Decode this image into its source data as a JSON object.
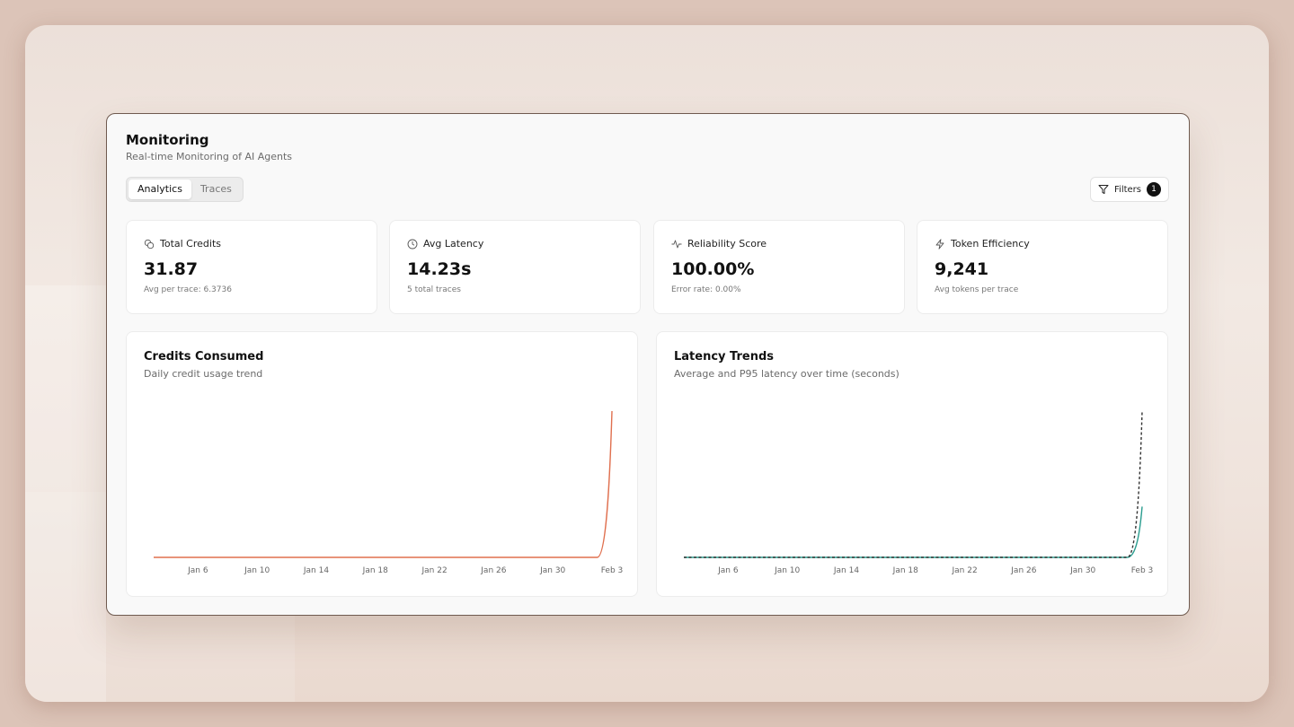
{
  "header": {
    "title": "Monitoring",
    "subtitle": "Real-time Monitoring of AI Agents"
  },
  "tabs": [
    {
      "label": "Analytics",
      "active": true
    },
    {
      "label": "Traces",
      "active": false
    }
  ],
  "filters": {
    "label": "Filters",
    "count": "1"
  },
  "kpis": [
    {
      "label": "Total Credits",
      "value": "31.87",
      "sub": "Avg per trace: 6.3736",
      "icon": "coins-icon"
    },
    {
      "label": "Avg Latency",
      "value": "14.23s",
      "sub": "5 total traces",
      "icon": "clock-icon"
    },
    {
      "label": "Reliability Score",
      "value": "100.00%",
      "sub": "Error rate: 0.00%",
      "icon": "activity-icon"
    },
    {
      "label": "Token Efficiency",
      "value": "9,241",
      "sub": "Avg tokens per trace",
      "icon": "zap-icon"
    }
  ],
  "charts": {
    "credits": {
      "title": "Credits Consumed",
      "subtitle": "Daily credit usage trend"
    },
    "latency": {
      "title": "Latency Trends",
      "subtitle": "Average and P95 latency over time (seconds)"
    }
  },
  "colors": {
    "credits_line": "#e0704f",
    "avg_line": "#2a9d8f",
    "p95_line": "#333333"
  },
  "chart_data": [
    {
      "type": "line",
      "title": "Credits Consumed",
      "subtitle": "Daily credit usage trend",
      "x_ticks": [
        "Jan 6",
        "Jan 10",
        "Jan 14",
        "Jan 18",
        "Jan 22",
        "Jan 26",
        "Jan 30",
        "Feb 3"
      ],
      "x": [
        "Jan 3",
        "Jan 4",
        "Jan 5",
        "Jan 6",
        "Jan 7",
        "Jan 8",
        "Jan 9",
        "Jan 10",
        "Jan 11",
        "Jan 12",
        "Jan 13",
        "Jan 14",
        "Jan 15",
        "Jan 16",
        "Jan 17",
        "Jan 18",
        "Jan 19",
        "Jan 20",
        "Jan 21",
        "Jan 22",
        "Jan 23",
        "Jan 24",
        "Jan 25",
        "Jan 26",
        "Jan 27",
        "Jan 28",
        "Jan 29",
        "Jan 30",
        "Jan 31",
        "Feb 1",
        "Feb 2",
        "Feb 3"
      ],
      "series": [
        {
          "values": [
            0,
            0,
            0,
            0,
            0,
            0,
            0,
            0,
            0,
            0,
            0,
            0,
            0,
            0,
            0,
            0,
            0,
            0,
            0,
            0,
            0,
            0,
            0,
            0,
            0,
            0,
            0,
            0,
            0,
            0,
            0,
            31.87
          ]
        }
      ],
      "ylim": [
        0,
        31.87
      ],
      "grid": false
    },
    {
      "type": "line",
      "title": "Latency Trends",
      "subtitle": "Average and P95 latency over time (seconds)",
      "x_ticks": [
        "Jan 6",
        "Jan 10",
        "Jan 14",
        "Jan 18",
        "Jan 22",
        "Jan 26",
        "Jan 30",
        "Feb 3"
      ],
      "x": [
        "Jan 3",
        "Jan 4",
        "Jan 5",
        "Jan 6",
        "Jan 7",
        "Jan 8",
        "Jan 9",
        "Jan 10",
        "Jan 11",
        "Jan 12",
        "Jan 13",
        "Jan 14",
        "Jan 15",
        "Jan 16",
        "Jan 17",
        "Jan 18",
        "Jan 19",
        "Jan 20",
        "Jan 21",
        "Jan 22",
        "Jan 23",
        "Jan 24",
        "Jan 25",
        "Jan 26",
        "Jan 27",
        "Jan 28",
        "Jan 29",
        "Jan 30",
        "Jan 31",
        "Feb 1",
        "Feb 2",
        "Feb 3"
      ],
      "series": [
        {
          "style": "solid",
          "values": [
            0,
            0,
            0,
            0,
            0,
            0,
            0,
            0,
            0,
            0,
            0,
            0,
            0,
            0,
            0,
            0,
            0,
            0,
            0,
            0,
            0,
            0,
            0,
            0,
            0,
            0,
            0,
            0,
            0,
            0,
            0,
            14.23
          ]
        },
        {
          "style": "dashed",
          "values": [
            0,
            0,
            0,
            0,
            0,
            0,
            0,
            0,
            0,
            0,
            0,
            0,
            0,
            0,
            0,
            0,
            0,
            0,
            0,
            0,
            0,
            0,
            0,
            0,
            0,
            0,
            0,
            0,
            0,
            0,
            0,
            41
          ]
        }
      ],
      "ylim": [
        0,
        41
      ],
      "grid": false
    }
  ]
}
